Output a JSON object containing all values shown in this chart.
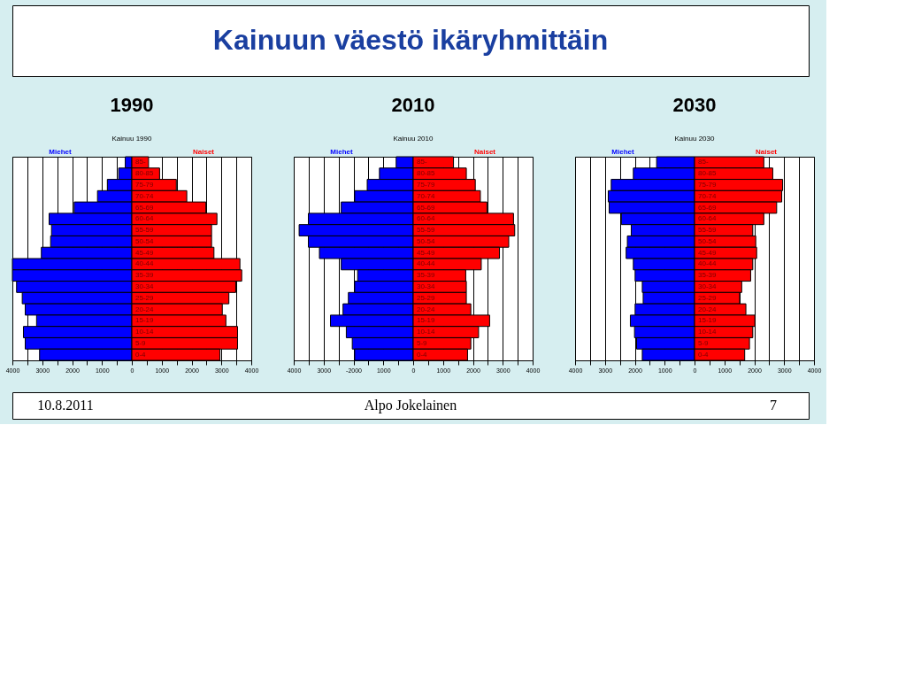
{
  "chart_data": [
    {
      "type": "bar",
      "orientation": "horizontal",
      "stacked": true,
      "title": "1990",
      "subtitle": "Kainuu 1990",
      "annotations": [
        "Kainuun väestö ikäryhmittäin",
        "10.8.2011",
        "Alpo Jokelainen",
        "7"
      ],
      "categories": [
        "85-",
        "80-85",
        "75-79",
        "70-74",
        "65-69",
        "60-64",
        "55-59",
        "50-54",
        "45-49",
        "40-44",
        "35-39",
        "30-34",
        "25-29",
        "20-24",
        "15-19",
        "10-14",
        "5-9",
        "0-4"
      ],
      "series": [
        {
          "name": "Miehet",
          "color": "#0000ff",
          "values": [
            -220,
            -440,
            -820,
            -1150,
            -1930,
            -2770,
            -2690,
            -2720,
            -3030,
            -4000,
            -4000,
            -3860,
            -3670,
            -3570,
            -3190,
            -3630,
            -3570,
            -3090
          ]
        },
        {
          "name": "Naiset",
          "color": "#ff0000",
          "values": [
            560,
            930,
            1490,
            1840,
            2480,
            2850,
            2670,
            2670,
            2750,
            3620,
            3680,
            3480,
            3250,
            3030,
            3150,
            3540,
            3540,
            2950
          ]
        }
      ],
      "xlim": [
        -4000,
        4000
      ],
      "xticks": [
        {
          "value": -4000,
          "label": "4000"
        },
        {
          "value": -3500,
          "label": null
        },
        {
          "value": -3000,
          "label": "3000"
        },
        {
          "value": -2500,
          "label": null
        },
        {
          "value": -2000,
          "label": "2000"
        },
        {
          "value": -1500,
          "label": null
        },
        {
          "value": -1000,
          "label": "1000"
        },
        {
          "value": -500,
          "label": null
        },
        0,
        {
          "value": 500,
          "label": null
        },
        1000,
        {
          "value": 1500,
          "label": null
        },
        2000,
        {
          "value": 2500,
          "label": null
        },
        3000,
        {
          "value": 3500,
          "label": null
        },
        4000
      ],
      "grid": "x",
      "legend": false
    },
    {
      "type": "bar",
      "orientation": "horizontal",
      "stacked": true,
      "title": "2010",
      "subtitle": "Kainuu 2010",
      "categories": [
        "85-",
        "80-85",
        "75-79",
        "70-74",
        "65-69",
        "60-64",
        "55-59",
        "50-54",
        "45-49",
        "40-44",
        "35-39",
        "30-34",
        "25-29",
        "20-24",
        "15-19",
        "10-14",
        "5-9",
        "0-4"
      ],
      "series": [
        {
          "name": "Miehet",
          "color": "#0000ff",
          "values": [
            -570,
            -1130,
            -1540,
            -1960,
            -2410,
            -3510,
            -3820,
            -3510,
            -3140,
            -2410,
            -1860,
            -1960,
            -2170,
            -2350,
            -2770,
            -2240,
            -2040,
            -1960
          ]
        },
        {
          "name": "Naiset",
          "color": "#ff0000",
          "values": [
            1350,
            1780,
            2080,
            2250,
            2470,
            3360,
            3400,
            3200,
            2890,
            2280,
            1760,
            1780,
            1780,
            1930,
            2560,
            2190,
            1930,
            1820
          ]
        }
      ],
      "xlim": [
        -4000,
        4000
      ],
      "xticks": [
        {
          "value": -4000,
          "label": "4000"
        },
        {
          "value": -3500,
          "label": null
        },
        {
          "value": -3000,
          "label": "3000"
        },
        {
          "value": -2500,
          "label": null
        },
        -2000,
        {
          "value": -1500,
          "label": null
        },
        {
          "value": -1000,
          "label": "1000"
        },
        {
          "value": -500,
          "label": null
        },
        0,
        {
          "value": 500,
          "label": null
        },
        1000,
        {
          "value": 1500,
          "label": null
        },
        2000,
        {
          "value": 2500,
          "label": null
        },
        3000,
        {
          "value": 3500,
          "label": null
        },
        4000
      ],
      "grid": "x",
      "legend": false
    },
    {
      "type": "bar",
      "orientation": "horizontal",
      "stacked": true,
      "title": "2030",
      "subtitle": "Kainuu 2030",
      "categories": [
        "85-",
        "80-85",
        "75-79",
        "70-74",
        "65-69",
        "60-64",
        "55-59",
        "50-54",
        "45-49",
        "40-44",
        "35-39",
        "30-34",
        "25-29",
        "20-24",
        "15-19",
        "10-14",
        "5-9",
        "0-4"
      ],
      "series": [
        {
          "name": "Miehet",
          "color": "#0000ff",
          "values": [
            -1270,
            -2050,
            -2790,
            -2890,
            -2860,
            -2450,
            -2120,
            -2250,
            -2290,
            -2050,
            -1990,
            -1750,
            -1720,
            -1990,
            -2150,
            -2010,
            -1940,
            -1750
          ]
        },
        {
          "name": "Naiset",
          "color": "#ff0000",
          "values": [
            2320,
            2620,
            2950,
            2920,
            2750,
            2320,
            1950,
            2050,
            2080,
            1950,
            1880,
            1580,
            1510,
            1720,
            2020,
            1950,
            1840,
            1680
          ]
        }
      ],
      "xlim": [
        -4000,
        4000
      ],
      "xticks": [
        {
          "value": -4000,
          "label": "4000"
        },
        {
          "value": -3500,
          "label": null
        },
        {
          "value": -3000,
          "label": "3000"
        },
        {
          "value": -2500,
          "label": null
        },
        {
          "value": -2000,
          "label": "2000"
        },
        {
          "value": -1500,
          "label": null
        },
        {
          "value": -1000,
          "label": "1000"
        },
        {
          "value": -500,
          "label": null
        },
        0,
        {
          "value": 500,
          "label": null
        },
        1000,
        {
          "value": 1500,
          "label": null
        },
        2000,
        {
          "value": 2500,
          "label": null
        },
        3000,
        {
          "value": 3500,
          "label": null
        },
        4000
      ],
      "grid": "x",
      "legend": false
    }
  ]
}
